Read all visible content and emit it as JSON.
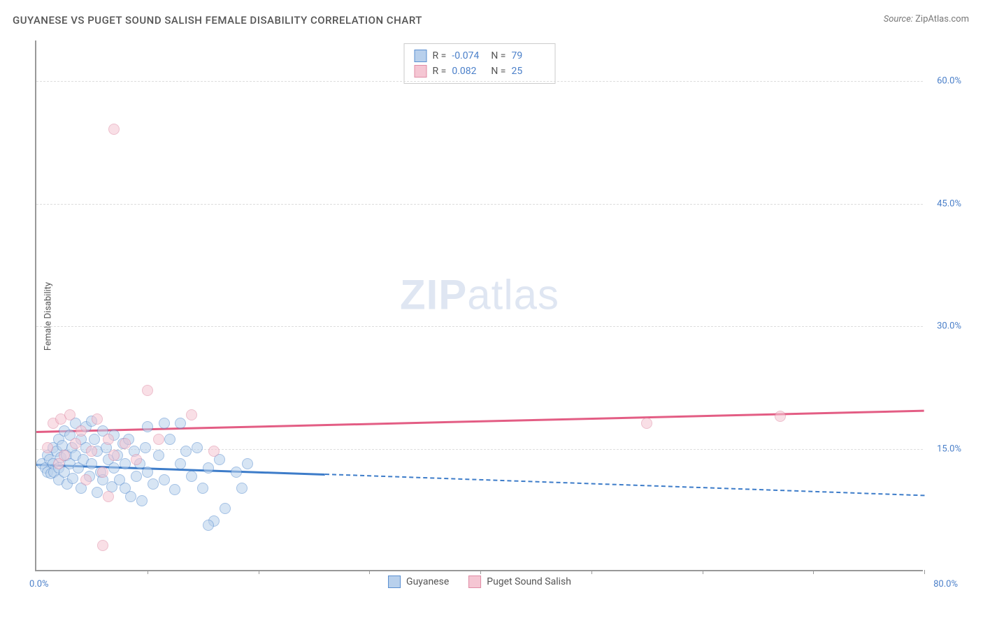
{
  "title": "GUYANESE VS PUGET SOUND SALISH FEMALE DISABILITY CORRELATION CHART",
  "source_label": "Source:",
  "source_value": "ZipAtlas.com",
  "y_axis_label": "Female Disability",
  "watermark_bold": "ZIP",
  "watermark_light": "atlas",
  "chart": {
    "type": "scatter",
    "xlim": [
      0,
      80
    ],
    "ylim": [
      0,
      65
    ],
    "x_origin_label": "0.0%",
    "x_max_label": "80.0%",
    "y_ticks": [
      {
        "v": 15,
        "label": "15.0%"
      },
      {
        "v": 30,
        "label": "30.0%"
      },
      {
        "v": 45,
        "label": "45.0%"
      },
      {
        "v": 60,
        "label": "60.0%"
      }
    ],
    "x_tick_positions": [
      10,
      20,
      30,
      40,
      50,
      60,
      70,
      80
    ],
    "background_color": "#ffffff",
    "grid_color": "#dddddd",
    "axis_color": "#999999",
    "tick_label_color": "#4a7fc9",
    "point_radius": 8,
    "series": [
      {
        "name": "Guyanese",
        "fill": "#b8d0ec",
        "stroke": "#5a8fd0",
        "fill_opacity": 0.55,
        "r_value": "-0.074",
        "n_value": "79",
        "trend": {
          "color": "#3d7cc9",
          "solid": {
            "x1": 0,
            "y1": 13.2,
            "x2": 26,
            "y2": 12.0
          },
          "dashed": {
            "x1": 26,
            "y1": 12.0,
            "x2": 80,
            "y2": 9.4
          }
        },
        "points": [
          [
            0.5,
            13
          ],
          [
            0.8,
            12.5
          ],
          [
            1,
            14
          ],
          [
            1,
            12
          ],
          [
            1.2,
            13.5
          ],
          [
            1.3,
            11.8
          ],
          [
            1.5,
            15
          ],
          [
            1.5,
            13
          ],
          [
            1.6,
            12
          ],
          [
            1.8,
            14.5
          ],
          [
            2,
            12.5
          ],
          [
            2,
            16
          ],
          [
            2,
            11
          ],
          [
            2.2,
            13.8
          ],
          [
            2.3,
            15.2
          ],
          [
            2.5,
            17
          ],
          [
            2.5,
            12
          ],
          [
            2.7,
            14
          ],
          [
            2.8,
            10.5
          ],
          [
            3,
            16.5
          ],
          [
            3,
            13
          ],
          [
            3.2,
            15
          ],
          [
            3.3,
            11.2
          ],
          [
            3.5,
            18
          ],
          [
            3.5,
            14
          ],
          [
            3.8,
            12.5
          ],
          [
            4,
            16
          ],
          [
            4,
            10
          ],
          [
            4.2,
            13.5
          ],
          [
            4.5,
            17.5
          ],
          [
            4.5,
            15
          ],
          [
            4.8,
            11.5
          ],
          [
            5,
            18.2
          ],
          [
            5,
            13
          ],
          [
            5.2,
            16
          ],
          [
            5.5,
            14.5
          ],
          [
            5.5,
            9.5
          ],
          [
            5.8,
            12
          ],
          [
            6,
            17
          ],
          [
            6,
            11
          ],
          [
            6.3,
            15
          ],
          [
            6.5,
            13.5
          ],
          [
            6.8,
            10.2
          ],
          [
            7,
            16.5
          ],
          [
            7,
            12.5
          ],
          [
            7.3,
            14
          ],
          [
            7.5,
            11
          ],
          [
            7.8,
            15.5
          ],
          [
            8,
            10
          ],
          [
            8,
            13
          ],
          [
            8.3,
            16
          ],
          [
            8.5,
            9
          ],
          [
            8.8,
            14.5
          ],
          [
            9,
            11.5
          ],
          [
            9.3,
            13
          ],
          [
            9.5,
            8.5
          ],
          [
            9.8,
            15
          ],
          [
            10,
            12
          ],
          [
            10.5,
            10.5
          ],
          [
            11,
            14
          ],
          [
            11.5,
            11
          ],
          [
            12,
            16
          ],
          [
            12.5,
            9.8
          ],
          [
            13,
            13
          ],
          [
            13.5,
            14.5
          ],
          [
            14,
            11.5
          ],
          [
            14.5,
            15
          ],
          [
            15,
            10
          ],
          [
            15.5,
            12.5
          ],
          [
            16,
            6
          ],
          [
            16.5,
            13.5
          ],
          [
            17,
            7.5
          ],
          [
            18,
            12
          ],
          [
            18.5,
            10
          ],
          [
            19,
            13
          ],
          [
            13,
            18
          ],
          [
            15.5,
            5.5
          ],
          [
            10,
            17.5
          ],
          [
            11.5,
            18
          ]
        ]
      },
      {
        "name": "Puget Sound Salish",
        "fill": "#f5c6d3",
        "stroke": "#e08ca5",
        "fill_opacity": 0.55,
        "r_value": "0.082",
        "n_value": "25",
        "trend": {
          "color": "#e35d84",
          "solid": {
            "x1": 0,
            "y1": 17.2,
            "x2": 80,
            "y2": 19.8
          }
        },
        "points": [
          [
            1,
            15
          ],
          [
            1.5,
            18
          ],
          [
            2,
            13
          ],
          [
            2.2,
            18.5
          ],
          [
            2.5,
            14
          ],
          [
            3,
            19
          ],
          [
            3.5,
            15.5
          ],
          [
            4,
            17
          ],
          [
            4.5,
            11
          ],
          [
            5,
            14.5
          ],
          [
            5.5,
            18.5
          ],
          [
            6,
            12
          ],
          [
            6.5,
            16
          ],
          [
            7,
            14
          ],
          [
            8,
            15.5
          ],
          [
            9,
            13.5
          ],
          [
            10,
            22
          ],
          [
            11,
            16
          ],
          [
            14,
            19
          ],
          [
            16,
            14.5
          ],
          [
            7,
            54
          ],
          [
            6,
            3
          ],
          [
            6.5,
            9
          ],
          [
            55,
            18
          ],
          [
            67,
            18.8
          ]
        ]
      }
    ]
  }
}
